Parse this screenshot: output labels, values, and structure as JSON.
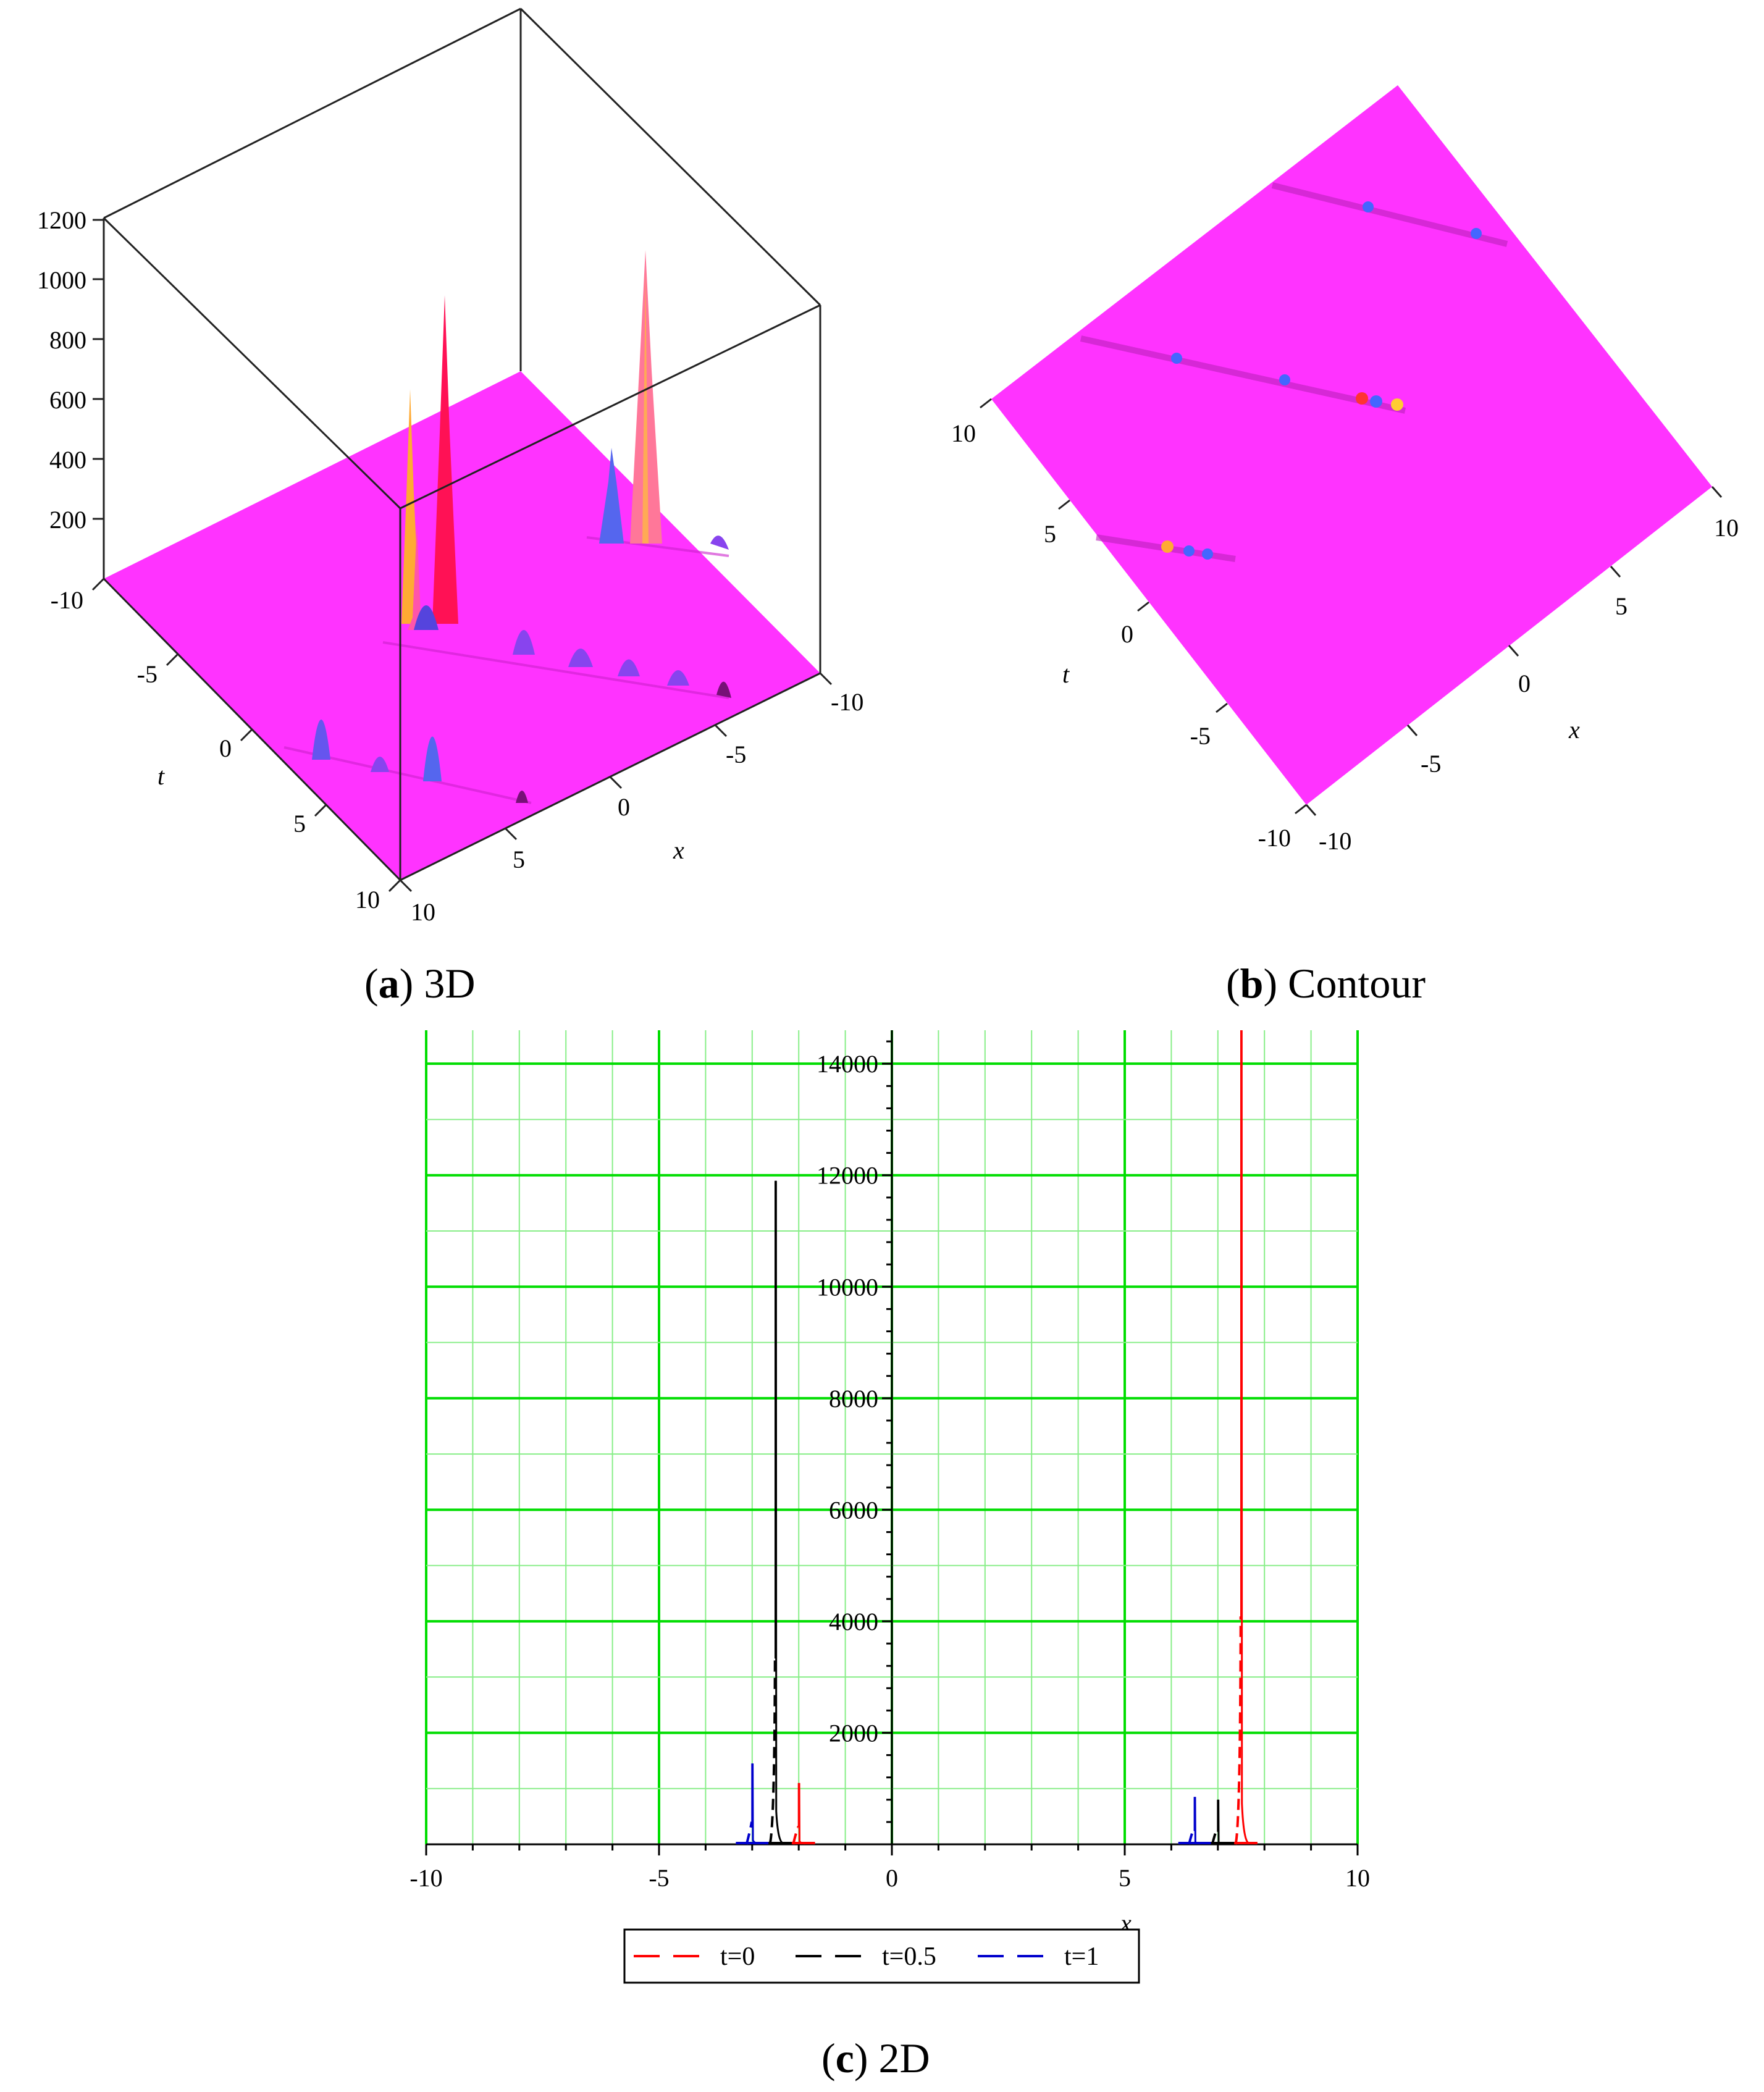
{
  "captions": {
    "a_letter": "a",
    "a_text": "3D",
    "b_letter": "b",
    "b_text": "Contour",
    "c_letter": "c",
    "c_text": "2D"
  },
  "colors": {
    "surface": "#ff33ff",
    "grid_major": "#00dd00",
    "grid_minor": "#88ee88"
  },
  "chart_data": [
    {
      "panel": "a",
      "type": "surface3d",
      "title": "3D",
      "xlabel": "x",
      "ylabel": "t",
      "z_ticks": [
        "1200",
        "1000",
        "800",
        "600",
        "400",
        "200"
      ],
      "t_ticks": [
        "-10",
        "-5",
        "0",
        "5",
        "10"
      ],
      "x_ticks": [
        "-10",
        "-5",
        "0",
        "5",
        "10"
      ],
      "zlim": [
        0,
        1200
      ],
      "xlim": [
        -10,
        10
      ],
      "tlim": [
        -10,
        10
      ]
    },
    {
      "panel": "b",
      "type": "heatmap",
      "title": "Contour",
      "xlabel": "x",
      "ylabel": "t",
      "t_ticks": [
        "-10",
        "-5",
        "0",
        "5",
        "10"
      ],
      "x_ticks": [
        "-10",
        "-5",
        "0",
        "5",
        "10"
      ],
      "xlim": [
        -10,
        10
      ],
      "tlim": [
        -10,
        10
      ]
    },
    {
      "panel": "c",
      "type": "line",
      "title": "2D",
      "xlabel": "x",
      "ylabel": "",
      "xlim": [
        -10,
        10
      ],
      "ylim": [
        0,
        14600
      ],
      "x_ticks": [
        "-10",
        "-5",
        "0",
        "5",
        "10"
      ],
      "y_ticks": [
        "2000",
        "4000",
        "6000",
        "8000",
        "10000",
        "12000",
        "14000"
      ],
      "grid": true,
      "legend_position": "bottom-center",
      "series": [
        {
          "name": "t=0",
          "color": "#ff0000",
          "dash": true,
          "peaks": [
            {
              "x": -2.0,
              "y": 1100
            },
            {
              "x": 7.5,
              "y": 14600
            }
          ]
        },
        {
          "name": "t=0.5",
          "color": "#000000",
          "dash": true,
          "peaks": [
            {
              "x": -2.5,
              "y": 11900
            },
            {
              "x": 7.0,
              "y": 800
            }
          ]
        },
        {
          "name": "t=1",
          "color": "#0000cc",
          "dash": true,
          "peaks": [
            {
              "x": -3.0,
              "y": 1450
            },
            {
              "x": 6.5,
              "y": 850
            }
          ]
        }
      ]
    }
  ]
}
